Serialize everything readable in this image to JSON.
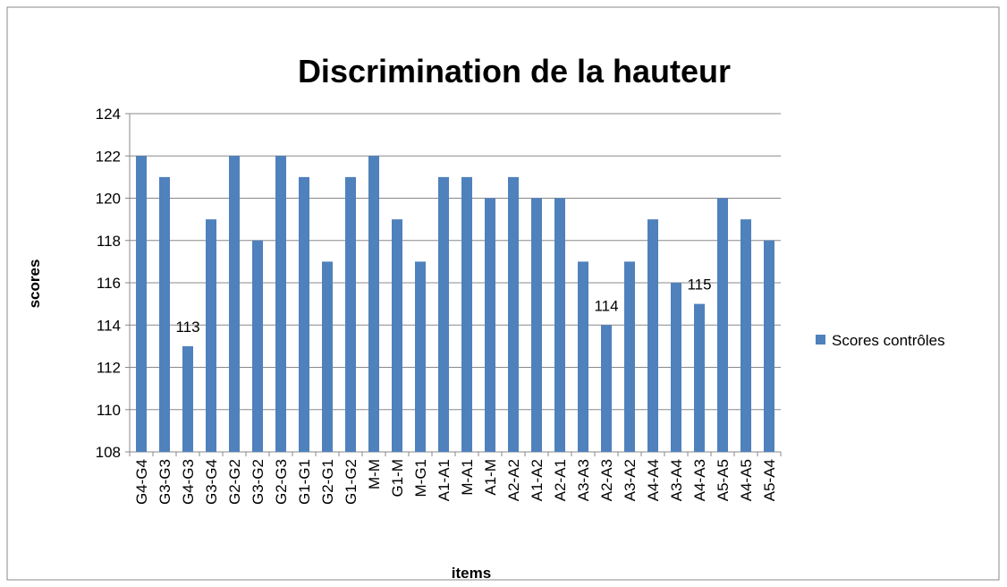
{
  "chart_data": {
    "type": "bar",
    "title": "Discrimination de la hauteur",
    "x_label": "items",
    "y_label": "scores",
    "categories": [
      "G4-G4",
      "G3-G3",
      "G4-G3",
      "G3-G4",
      "G2-G2",
      "G3-G2",
      "G2-G3",
      "G1-G1",
      "G2-G1",
      "G1-G2",
      "M-M",
      "G1-M",
      "M-G1",
      "A1-A1",
      "M-A1",
      "A1-M",
      "A2-A2",
      "A1-A2",
      "A2-A1",
      "A3-A3",
      "A2-A3",
      "A3-A2",
      "A4-A4",
      "A3-A4",
      "A4-A3",
      "A5-A5",
      "A4-A5",
      "A5-A4"
    ],
    "series": [
      {
        "name": "Scores contrôles",
        "color": "#4f81bd",
        "values": [
          122,
          121,
          113,
          119,
          122,
          118,
          122,
          121,
          117,
          121,
          122,
          119,
          117,
          121,
          121,
          120,
          121,
          120,
          120,
          117,
          114,
          117,
          119,
          116,
          115,
          120,
          119,
          118
        ],
        "value_labels": [
          null,
          null,
          "113",
          null,
          null,
          null,
          null,
          null,
          null,
          null,
          null,
          null,
          null,
          null,
          null,
          null,
          null,
          null,
          null,
          null,
          "114",
          null,
          null,
          null,
          "115",
          null,
          null,
          null
        ]
      }
    ],
    "ylim": [
      108,
      124
    ],
    "yticks": [
      108,
      110,
      112,
      114,
      116,
      118,
      120,
      122,
      124
    ],
    "grid": true,
    "legend": "right"
  }
}
